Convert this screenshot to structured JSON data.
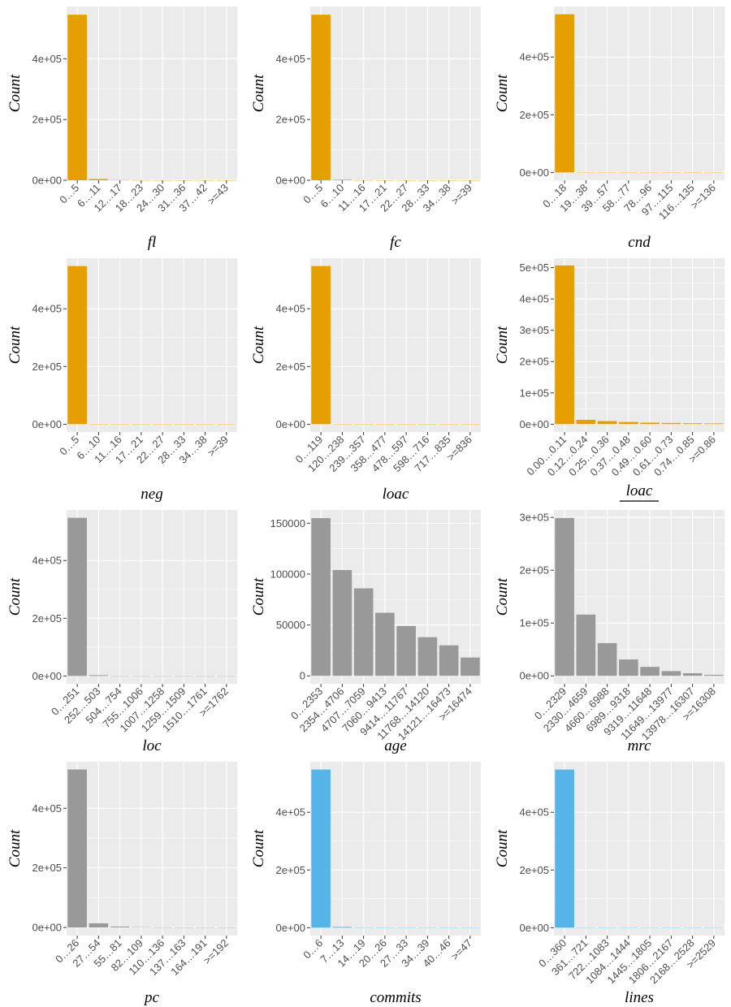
{
  "colors": {
    "orange": "#E69F00",
    "gray": "#999999",
    "blue": "#56B4E9",
    "panel_bg": "#EBEBEB",
    "grid": "#FFFFFF"
  },
  "chart_data": [
    {
      "type": "bar",
      "xlabel": "fl",
      "ylabel": "Count",
      "color": "orange",
      "categories": [
        "0…5",
        "6…11",
        "12…17",
        "18…23",
        "24…30",
        "31…36",
        "37…42",
        ">=43"
      ],
      "values": [
        545000,
        4000,
        800,
        300,
        100,
        50,
        30,
        20
      ],
      "yticks": [
        0,
        200000,
        400000
      ],
      "ytick_labels": [
        "0e+00",
        "2e+05",
        "4e+05"
      ],
      "ylim": [
        0,
        572000
      ]
    },
    {
      "type": "bar",
      "xlabel": "fc",
      "ylabel": "Count",
      "color": "orange",
      "categories": [
        "0…5",
        "6…10",
        "11…16",
        "17…21",
        "22…27",
        "28…33",
        "34…38",
        ">=39"
      ],
      "values": [
        545000,
        2000,
        300,
        100,
        50,
        30,
        20,
        10
      ],
      "yticks": [
        0,
        200000,
        400000
      ],
      "ytick_labels": [
        "0e+00",
        "2e+05",
        "4e+05"
      ],
      "ylim": [
        0,
        572000
      ]
    },
    {
      "type": "bar",
      "xlabel": "cnd",
      "ylabel": "Count",
      "color": "orange",
      "categories": [
        "0…18",
        "19…38",
        "39…57",
        "58…77",
        "78…96",
        "97…115",
        "116…135",
        ">=136"
      ],
      "values": [
        548000,
        500,
        100,
        50,
        30,
        20,
        10,
        10
      ],
      "yticks": [
        0,
        200000,
        400000
      ],
      "ytick_labels": [
        "0e+00",
        "2e+05",
        "4e+05"
      ],
      "ylim": [
        -27000,
        575000
      ]
    },
    {
      "type": "bar",
      "xlabel": "neg",
      "ylabel": "Count",
      "color": "orange",
      "categories": [
        "0…5",
        "6…10",
        "11…16",
        "17…21",
        "22…27",
        "28…33",
        "34…38",
        ">=39"
      ],
      "values": [
        548000,
        1000,
        200,
        100,
        50,
        30,
        20,
        10
      ],
      "yticks": [
        0,
        200000,
        400000
      ],
      "ytick_labels": [
        "0e+00",
        "2e+05",
        "4e+05"
      ],
      "ylim": [
        -27000,
        575000
      ]
    },
    {
      "type": "bar",
      "xlabel": "loac",
      "ylabel": "Count",
      "color": "orange",
      "categories": [
        "0…119",
        "120…238",
        "239…357",
        "358…477",
        "478…597",
        "598…716",
        "717…835",
        ">=836"
      ],
      "values": [
        548000,
        500,
        100,
        50,
        30,
        20,
        10,
        10
      ],
      "yticks": [
        0,
        200000,
        400000
      ],
      "ytick_labels": [
        "0e+00",
        "2e+05",
        "4e+05"
      ],
      "ylim": [
        -27000,
        575000
      ]
    },
    {
      "type": "bar",
      "xlabel_num": "loac",
      "xlabel_den": "loc",
      "ylabel": "Count",
      "color": "orange",
      "categories": [
        "0.00…0.11",
        "0.12…0.24",
        "0.25…0.36",
        "0.37…0.48",
        "0.49…0.60",
        "0.61…0.73",
        "0.74…0.85",
        ">=0.86"
      ],
      "values": [
        507000,
        14000,
        10000,
        7000,
        5000,
        4000,
        3000,
        2500
      ],
      "yticks": [
        0,
        100000,
        200000,
        300000,
        400000,
        500000
      ],
      "ytick_labels": [
        "0e+00",
        "1e+05",
        "2e+05",
        "3e+05",
        "4e+05",
        "5e+05"
      ],
      "ylim": [
        -25000,
        530000
      ]
    },
    {
      "type": "bar",
      "xlabel": "loc",
      "ylabel": "Count",
      "color": "gray",
      "categories": [
        "0…251",
        "252…503",
        "504…754",
        "755…1006",
        "1007…1258",
        "1259…1509",
        "1510…1761",
        ">=1762"
      ],
      "values": [
        548000,
        3000,
        800,
        300,
        100,
        50,
        30,
        20
      ],
      "yticks": [
        0,
        200000,
        400000
      ],
      "ytick_labels": [
        "0e+00",
        "2e+05",
        "4e+05"
      ],
      "ylim": [
        -27000,
        575000
      ]
    },
    {
      "type": "bar",
      "xlabel": "age",
      "ylabel": "Count",
      "color": "gray",
      "categories": [
        "0…2353",
        "2354…4706",
        "4707…7059",
        "7060…9413",
        "9414…11767",
        "11768…14120",
        "14121…16473",
        ">=16474"
      ],
      "values": [
        155000,
        104000,
        86000,
        62000,
        49000,
        38000,
        30000,
        18000
      ],
      "yticks": [
        0,
        50000,
        100000,
        150000
      ],
      "ytick_labels": [
        "0",
        "50000",
        "100000",
        "150000"
      ],
      "ylim": [
        -7800,
        163000
      ]
    },
    {
      "type": "bar",
      "xlabel": "mrc",
      "ylabel": "Count",
      "color": "gray",
      "categories": [
        "0…2329",
        "2330…4659",
        "4660…6988",
        "6989…9318",
        "9319…11648",
        "11649…13977",
        "13978…16307",
        ">=16308"
      ],
      "values": [
        299000,
        116000,
        62000,
        31000,
        17000,
        9000,
        5000,
        2000
      ],
      "yticks": [
        0,
        100000,
        200000,
        300000
      ],
      "ytick_labels": [
        "0e+00",
        "1e+05",
        "2e+05",
        "3e+05"
      ],
      "ylim": [
        -15000,
        314000
      ]
    },
    {
      "type": "bar",
      "xlabel": "pc",
      "ylabel": "Count",
      "color": "gray",
      "categories": [
        "0…26",
        "27…54",
        "55…81",
        "82…109",
        "110…136",
        "137…163",
        "164…191",
        ">=192"
      ],
      "values": [
        530000,
        14000,
        3000,
        1000,
        400,
        200,
        100,
        50
      ],
      "yticks": [
        0,
        200000,
        400000
      ],
      "ytick_labels": [
        "0e+00",
        "2e+05",
        "4e+05"
      ],
      "ylim": [
        -27000,
        556000
      ]
    },
    {
      "type": "bar",
      "xlabel": "commits",
      "ylabel": "Count",
      "color": "blue",
      "categories": [
        "0…6",
        "7…13",
        "14…19",
        "20…26",
        "27…33",
        "34…39",
        "40…46",
        ">=47"
      ],
      "values": [
        548000,
        3000,
        500,
        200,
        100,
        50,
        30,
        20
      ],
      "yticks": [
        0,
        200000,
        400000
      ],
      "ytick_labels": [
        "0e+00",
        "2e+05",
        "4e+05"
      ],
      "ylim": [
        -27000,
        575000
      ]
    },
    {
      "type": "bar",
      "xlabel": "lines",
      "ylabel": "Count",
      "color": "blue",
      "categories": [
        "0…360",
        "361…721",
        "722…1083",
        "1084…1444",
        "1445…1805",
        "1806…2167",
        "2168…2528",
        ">=2529"
      ],
      "values": [
        548000,
        1000,
        200,
        100,
        50,
        30,
        20,
        10
      ],
      "yticks": [
        0,
        200000,
        400000
      ],
      "ytick_labels": [
        "0e+00",
        "2e+05",
        "4e+05"
      ],
      "ylim": [
        -27000,
        575000
      ]
    }
  ]
}
